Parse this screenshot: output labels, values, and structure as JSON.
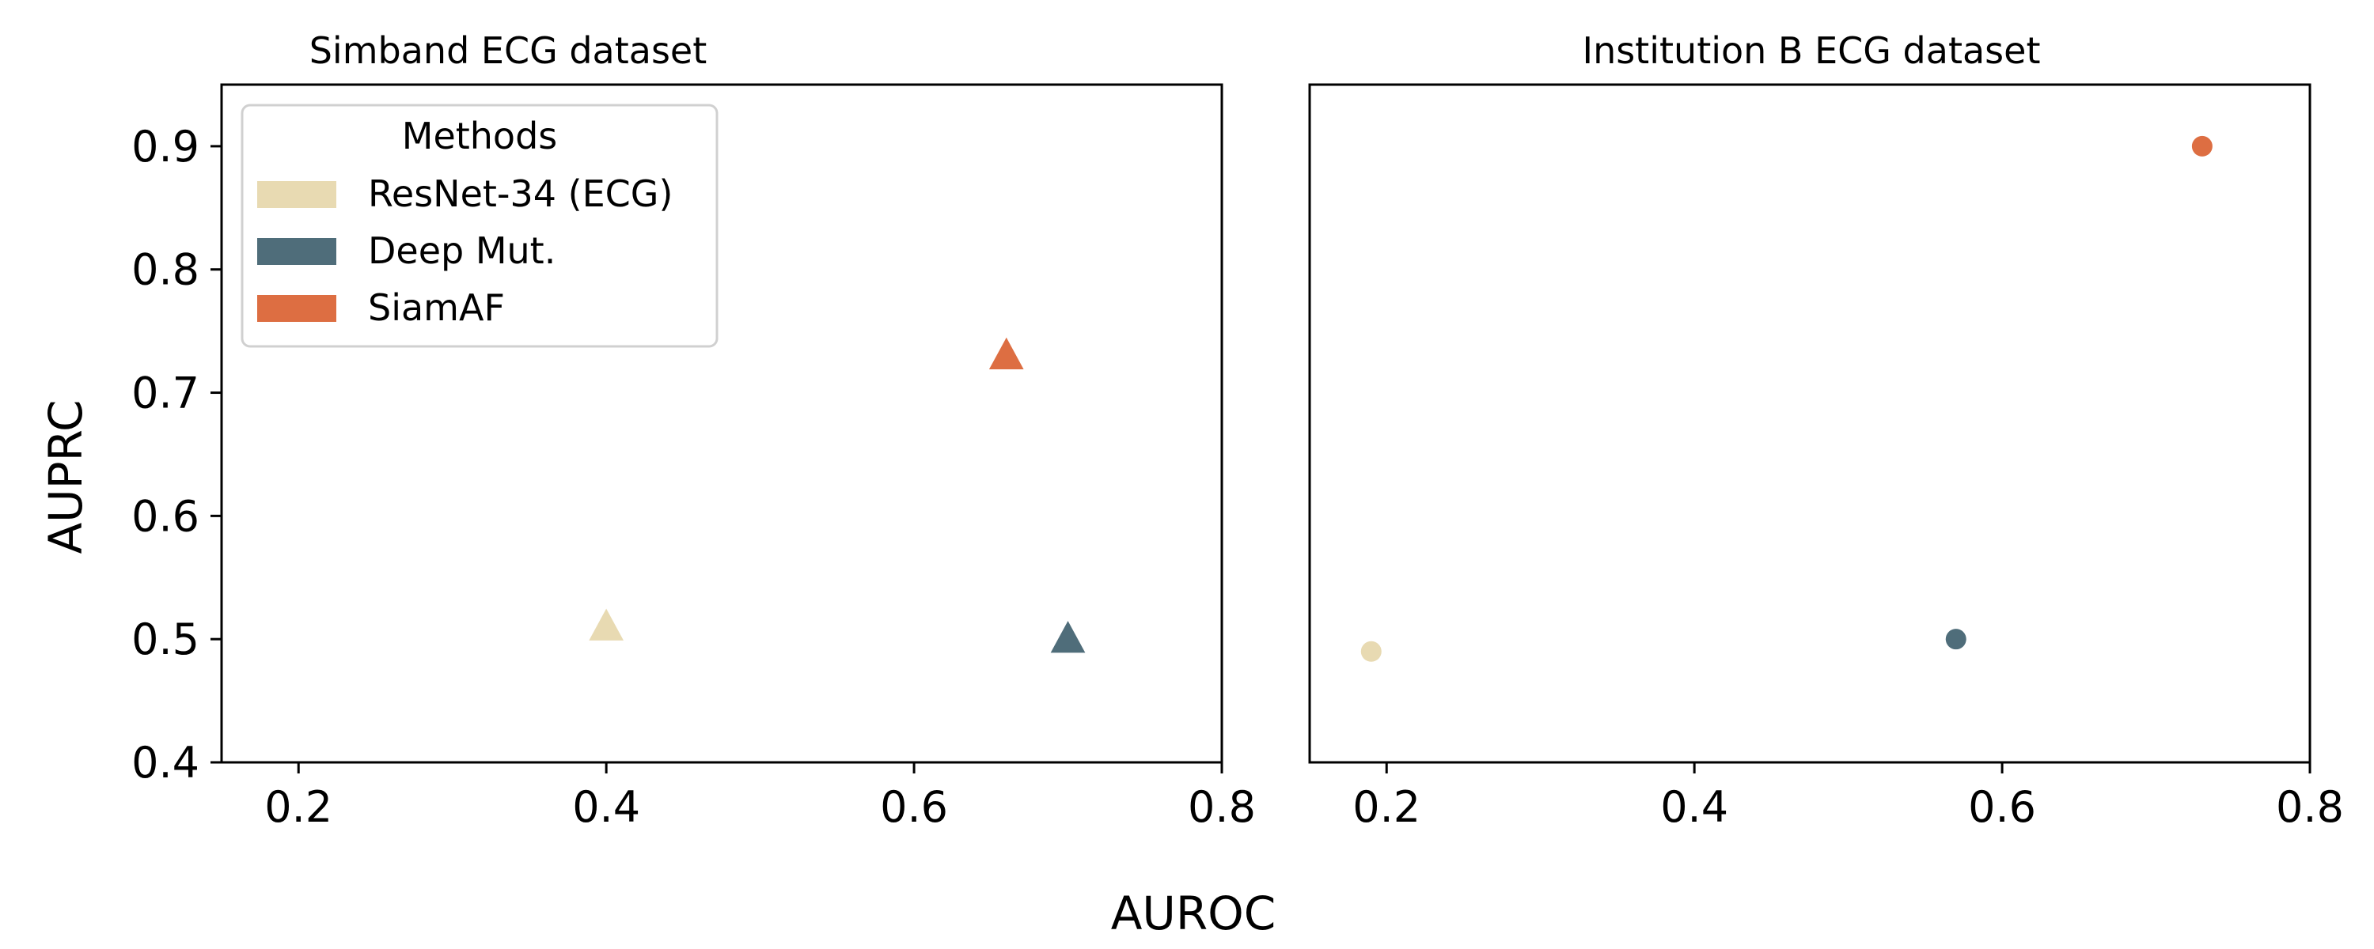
{
  "figure": {
    "xlabel": "AUROC",
    "ylabel": "AUPRC"
  },
  "legend": {
    "title": "Methods",
    "placement": "top-left",
    "entries": [
      {
        "label": "ResNet-34 (ECG)",
        "color": "#e8dab2"
      },
      {
        "label": "Deep Mut.",
        "color": "#4f6d7a"
      },
      {
        "label": "SiamAF",
        "color": "#dd6e42"
      }
    ]
  },
  "chart_data": [
    {
      "type": "scatter",
      "title": "Simband ECG dataset",
      "marker": "triangle",
      "xlim": [
        0.15,
        0.8
      ],
      "ylim": [
        0.4,
        0.95
      ],
      "xticks": [
        "0.2",
        "0.4",
        "0.6",
        "0.8"
      ],
      "yticks": [
        "0.4",
        "0.5",
        "0.6",
        "0.7",
        "0.8",
        "0.9"
      ],
      "points": [
        {
          "series": "ResNet-34 (ECG)",
          "x": 0.4,
          "y": 0.51,
          "color": "#e8dab2"
        },
        {
          "series": "Deep Mut.",
          "x": 0.7,
          "y": 0.5,
          "color": "#4f6d7a"
        },
        {
          "series": "SiamAF",
          "x": 0.66,
          "y": 0.73,
          "color": "#dd6e42"
        }
      ]
    },
    {
      "type": "scatter",
      "title": "Institution B ECG dataset",
      "marker": "circle",
      "xlim": [
        0.15,
        0.8
      ],
      "ylim": [
        0.4,
        0.95
      ],
      "xticks": [
        "0.2",
        "0.4",
        "0.6",
        "0.8"
      ],
      "yticks": [],
      "points": [
        {
          "series": "ResNet-34 (ECG)",
          "x": 0.19,
          "y": 0.49,
          "color": "#e8dab2"
        },
        {
          "series": "Deep Mut.",
          "x": 0.57,
          "y": 0.5,
          "color": "#4f6d7a"
        },
        {
          "series": "SiamAF",
          "x": 0.73,
          "y": 0.9,
          "color": "#dd6e42"
        }
      ]
    }
  ]
}
